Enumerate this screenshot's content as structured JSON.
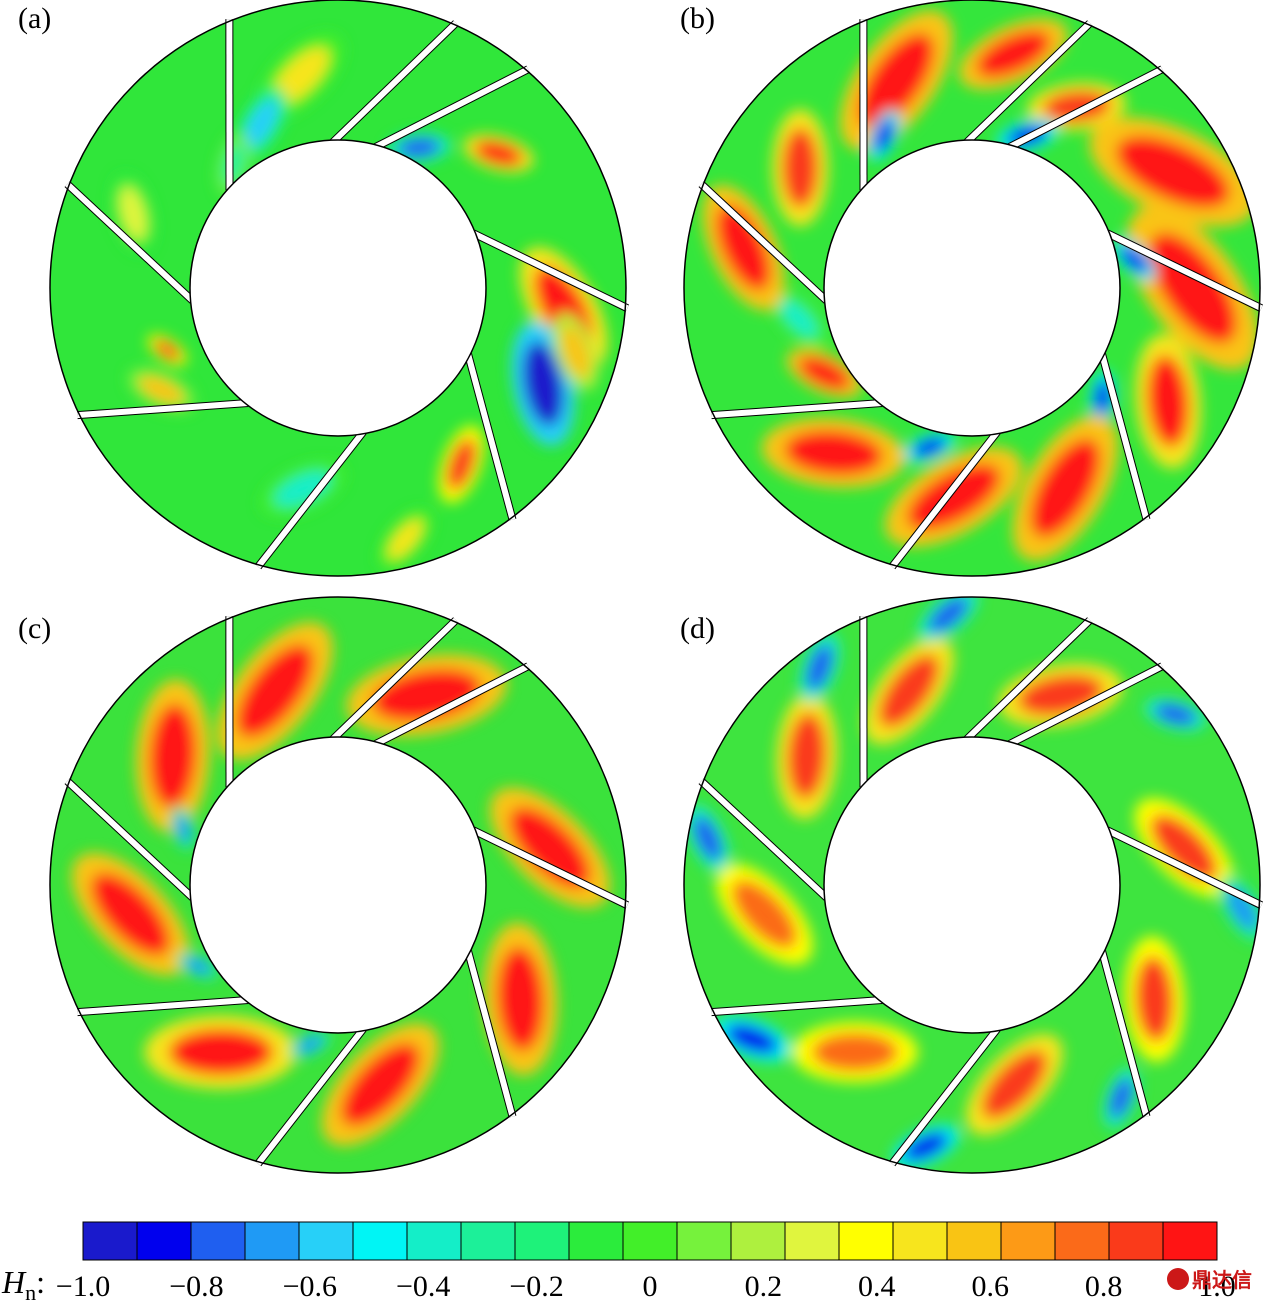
{
  "chart_data": {
    "type": "heatmap",
    "description_variable": "Hn",
    "colorbar": {
      "title_main": "H",
      "title_sub": "n",
      "title_colon": ":",
      "min": -1.0,
      "max": 1.0,
      "ticks": [
        {
          "value": -1.0,
          "label": "−1.0"
        },
        {
          "value": -0.8,
          "label": "−0.8"
        },
        {
          "value": -0.6,
          "label": "−0.6"
        },
        {
          "value": -0.4,
          "label": "−0.4"
        },
        {
          "value": -0.2,
          "label": "−0.2"
        },
        {
          "value": 0,
          "label": "0"
        },
        {
          "value": 0.2,
          "label": "0.2"
        },
        {
          "value": 0.4,
          "label": "0.4"
        },
        {
          "value": 0.6,
          "label": "0.6"
        },
        {
          "value": 0.8,
          "label": "0.8"
        },
        {
          "value": 1.0,
          "label": "1.0"
        }
      ],
      "colors": [
        "#1a1acc",
        "#0000ee",
        "#1f5ff0",
        "#1f9af5",
        "#27d0f8",
        "#00f5f5",
        "#14eec8",
        "#1cf099",
        "#1ef27a",
        "#2bec3c",
        "#42ef29",
        "#76f23c",
        "#aef03e",
        "#e0f53e",
        "#ffff00",
        "#f7e51d",
        "#f9c414",
        "#fd9a16",
        "#fb6a19",
        "#fa3a1a",
        "#ff1414"
      ]
    },
    "panels": [
      {
        "label": "(a)",
        "rotation": 0,
        "background": "#30e63a",
        "blobs": [
          {
            "angle": -100,
            "r": 0.74,
            "size": 24,
            "value": 0.45
          },
          {
            "angle": -115,
            "r": 0.62,
            "size": 18,
            "value": -0.6
          },
          {
            "angle": -60,
            "r": 0.55,
            "size": 14,
            "value": -0.85
          },
          {
            "angle": -40,
            "r": 0.72,
            "size": 16,
            "value": 0.95
          },
          {
            "angle": 5,
            "r": 0.78,
            "size": 30,
            "value": 0.95
          },
          {
            "angle": 25,
            "r": 0.78,
            "size": 28,
            "value": -1.0
          },
          {
            "angle": 15,
            "r": 0.85,
            "size": 18,
            "value": 0.6
          },
          {
            "angle": 55,
            "r": 0.74,
            "size": 18,
            "value": 0.85
          },
          {
            "angle": 75,
            "r": 0.9,
            "size": 16,
            "value": 0.45
          },
          {
            "angle": 100,
            "r": 0.7,
            "size": 20,
            "value": -0.45
          },
          {
            "angle": 150,
            "r": 0.7,
            "size": 16,
            "value": 0.55
          },
          {
            "angle": 160,
            "r": 0.62,
            "size": 10,
            "value": 0.85
          },
          {
            "angle": 200,
            "r": 0.75,
            "size": 18,
            "value": 0.3
          },
          {
            "angle": 230,
            "r": 0.55,
            "size": 14,
            "value": -0.3
          }
        ]
      },
      {
        "label": "(b)",
        "rotation": 0,
        "background": "#34e63c",
        "blobs": [
          {
            "angle": -110,
            "r": 0.76,
            "size": 36,
            "value": 1.0
          },
          {
            "angle": -80,
            "r": 0.82,
            "size": 26,
            "value": 1.0
          },
          {
            "angle": -60,
            "r": 0.72,
            "size": 22,
            "value": 0.9
          },
          {
            "angle": -70,
            "r": 0.55,
            "size": 14,
            "value": -0.95
          },
          {
            "angle": -30,
            "r": 0.8,
            "size": 40,
            "value": 1.0
          },
          {
            "angle": 0,
            "r": 0.76,
            "size": 42,
            "value": 1.0
          },
          {
            "angle": -10,
            "r": 0.56,
            "size": 12,
            "value": -0.95
          },
          {
            "angle": 30,
            "r": 0.78,
            "size": 30,
            "value": 0.95
          },
          {
            "angle": 40,
            "r": 0.58,
            "size": 12,
            "value": -0.95
          },
          {
            "angle": 65,
            "r": 0.76,
            "size": 36,
            "value": 1.0
          },
          {
            "angle": 95,
            "r": 0.72,
            "size": 34,
            "value": 1.0
          },
          {
            "angle": 105,
            "r": 0.56,
            "size": 12,
            "value": -0.95
          },
          {
            "angle": 130,
            "r": 0.74,
            "size": 32,
            "value": 1.0
          },
          {
            "angle": 150,
            "r": 0.58,
            "size": 18,
            "value": 1.0
          },
          {
            "angle": 170,
            "r": 0.6,
            "size": 16,
            "value": -0.4
          },
          {
            "angle": 190,
            "r": 0.8,
            "size": 30,
            "value": 1.0
          },
          {
            "angle": 215,
            "r": 0.72,
            "size": 26,
            "value": 0.9
          },
          {
            "angle": 240,
            "r": 0.6,
            "size": 12,
            "value": -0.9
          }
        ]
      },
      {
        "label": "(c)",
        "rotation": 0,
        "background": "#3be23c",
        "blobs": [
          {
            "angle": -108,
            "r": 0.7,
            "size": 36,
            "value": 1.0
          },
          {
            "angle": -65,
            "r": 0.72,
            "size": 36,
            "value": 1.0
          },
          {
            "angle": -10,
            "r": 0.74,
            "size": 34,
            "value": 1.0
          },
          {
            "angle": 32,
            "r": 0.74,
            "size": 34,
            "value": 1.0
          },
          {
            "angle": 78,
            "r": 0.7,
            "size": 34,
            "value": 1.0
          },
          {
            "angle": 125,
            "r": 0.7,
            "size": 34,
            "value": 0.95
          },
          {
            "angle": 172,
            "r": 0.72,
            "size": 34,
            "value": 1.0
          },
          {
            "angle": 218,
            "r": 0.72,
            "size": 34,
            "value": 1.0
          },
          {
            "angle": 150,
            "r": 0.55,
            "size": 10,
            "value": -0.7
          },
          {
            "angle": 100,
            "r": 0.55,
            "size": 10,
            "value": -0.7
          },
          {
            "angle": 200,
            "r": 0.56,
            "size": 10,
            "value": -0.7
          }
        ]
      },
      {
        "label": "(d)",
        "rotation": 0,
        "background": "#3ee43f",
        "blobs": [
          {
            "angle": -108,
            "r": 0.7,
            "size": 28,
            "value": 0.9
          },
          {
            "angle": -65,
            "r": 0.72,
            "size": 28,
            "value": 0.9
          },
          {
            "angle": -10,
            "r": 0.74,
            "size": 28,
            "value": 0.85
          },
          {
            "angle": 32,
            "r": 0.74,
            "size": 28,
            "value": 0.85
          },
          {
            "angle": 78,
            "r": 0.7,
            "size": 28,
            "value": 0.9
          },
          {
            "angle": 125,
            "r": 0.7,
            "size": 28,
            "value": 0.8
          },
          {
            "angle": 172,
            "r": 0.72,
            "size": 28,
            "value": 0.8
          },
          {
            "angle": 218,
            "r": 0.72,
            "size": 28,
            "value": 0.9
          },
          {
            "angle": -95,
            "r": 0.94,
            "size": 16,
            "value": -0.85
          },
          {
            "angle": -40,
            "r": 0.92,
            "size": 14,
            "value": -0.8
          },
          {
            "angle": 5,
            "r": 0.94,
            "size": 16,
            "value": -0.75
          },
          {
            "angle": 55,
            "r": 0.9,
            "size": 14,
            "value": -0.85
          },
          {
            "angle": 100,
            "r": 0.92,
            "size": 16,
            "value": -0.9
          },
          {
            "angle": 145,
            "r": 0.93,
            "size": 18,
            "value": -0.95
          },
          {
            "angle": 190,
            "r": 0.93,
            "size": 16,
            "value": -0.8
          },
          {
            "angle": 235,
            "r": 0.92,
            "size": 16,
            "value": -0.85
          }
        ]
      }
    ]
  },
  "watermark": {
    "text": "鼎达信",
    "color": "#cc1818"
  }
}
